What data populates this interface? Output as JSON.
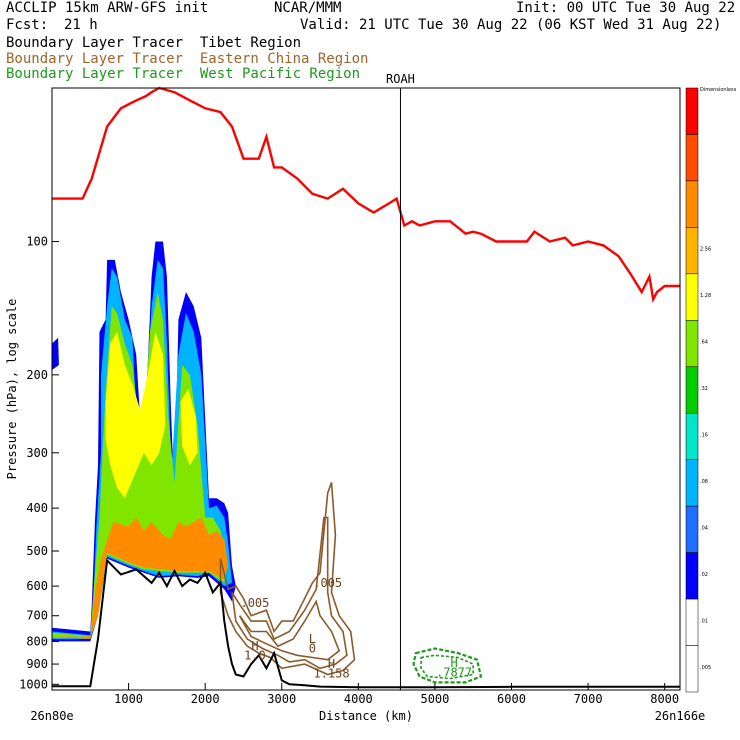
{
  "header": {
    "line1_left": "ACCLIP 15km ARW-GFS init",
    "line1_center": "NCAR/MMM",
    "line1_right": "Init: 00 UTC Tue 30 Aug 22",
    "fcst_label": "Fcst:",
    "fcst_value": "21 h",
    "valid": "Valid: 21 UTC Tue 30 Aug 22 (06 KST Wed 31 Aug 22)",
    "legend": [
      {
        "text": "Boundary Layer Tracer  Tibet Region",
        "color": "#000000"
      },
      {
        "text": "Boundary Layer Tracer  Eastern China Region",
        "color": "#a0642a"
      },
      {
        "text": "Boundary Layer Tracer  West Pacific Region",
        "color": "#1c9a1c"
      }
    ]
  },
  "chart_data": {
    "type": "contour",
    "xlabel": "Distance (km)",
    "ylabel": "Pressure (hPa), log scale",
    "xlim": [
      0,
      8200
    ],
    "ylim": [
      1030,
      45
    ],
    "x_ticks": [
      1000,
      2000,
      3000,
      4000,
      5000,
      6000,
      7000,
      8000
    ],
    "y_ticks": [
      100,
      200,
      300,
      400,
      500,
      600,
      700,
      800,
      900,
      1000
    ],
    "endpoints": {
      "left": "26n80e",
      "right": "26n166e"
    },
    "vertical_marker": {
      "label": "ROAH",
      "x": 4550
    },
    "colorbar": {
      "top_label": "Dimensionless",
      "colors": [
        "#ffffff",
        "#ffffff",
        "#0000ff",
        "#1e6fff",
        "#00b4ff",
        "#00e6c8",
        "#00cc00",
        "#80e600",
        "#ffff00",
        "#ffb400",
        "#ff8c00",
        "#ff4a00",
        "#ff0000"
      ],
      "labels": [
        ".005",
        ".01",
        ".02",
        ".04",
        ".08",
        ".16",
        ".32",
        ".64",
        "1.28",
        "2.56"
      ]
    },
    "contour_labels": [
      {
        "text": ".005",
        "x": 2650,
        "p": 655,
        "color": "#8b5a2b"
      },
      {
        "text": ".005",
        "x": 3600,
        "p": 590,
        "color": "#8b5a2b"
      },
      {
        "text": "H",
        "x": 2650,
        "p": 820,
        "color": "#8b5a2b"
      },
      {
        "text": "1.0",
        "x": 2650,
        "p": 860,
        "color": "#8b5a2b"
      },
      {
        "text": "L",
        "x": 3400,
        "p": 790,
        "color": "#8b5a2b"
      },
      {
        "text": "0",
        "x": 3400,
        "p": 830,
        "color": "#8b5a2b"
      },
      {
        "text": "H",
        "x": 3650,
        "p": 900,
        "color": "#8b5a2b"
      },
      {
        "text": "1.158",
        "x": 3650,
        "p": 945,
        "color": "#8b5a2b"
      },
      {
        "text": "H",
        "x": 5250,
        "p": 895,
        "color": "#1c9a1c"
      },
      {
        "text": ".7877",
        "x": 5250,
        "p": 940,
        "color": "#1c9a1c"
      }
    ],
    "series": [
      {
        "kind": "tropopause",
        "color": "#ff0000",
        "x": [
          0,
          400,
          520,
          720,
          900,
          1100,
          1220,
          1300,
          1400,
          1600,
          1800,
          2000,
          2200,
          2350,
          2500,
          2700,
          2800,
          2900,
          3000,
          3200,
          3400,
          3600,
          3800,
          4000,
          4200,
          4400,
          4500,
          4600,
          4700,
          4800,
          5000,
          5200,
          5400,
          5500,
          5600,
          5800,
          6000,
          6200,
          6300,
          6500,
          6700,
          6800,
          7000,
          7200,
          7400,
          7550,
          7700,
          7750,
          7800,
          7850,
          7900,
          8000,
          8200
        ],
        "p": [
          80,
          80,
          72,
          55,
          50,
          48,
          47,
          46,
          45,
          46,
          48,
          50,
          51,
          55,
          65,
          65,
          58,
          68,
          68,
          72,
          78,
          80,
          76,
          82,
          86,
          82,
          80,
          92,
          90,
          92,
          90,
          90,
          96,
          95,
          96,
          100,
          100,
          100,
          95,
          100,
          98,
          102,
          100,
          102,
          108,
          118,
          130,
          125,
          120,
          135,
          130,
          126,
          126
        ]
      },
      {
        "kind": "terrain",
        "color": "#000000",
        "x": [
          0,
          500,
          600,
          720,
          900,
          1100,
          1300,
          1400,
          1500,
          1600,
          1700,
          1800,
          1900,
          2000,
          2100,
          2200,
          2250,
          2300,
          2350,
          2400,
          2500,
          2600,
          2700,
          2800,
          2900,
          3000,
          3100,
          3300,
          3500,
          4000,
          4500,
          5000,
          6000,
          7000,
          8000,
          8200
        ],
        "p": [
          1010,
          1010,
          790,
          525,
          565,
          550,
          590,
          560,
          600,
          555,
          600,
          580,
          590,
          560,
          620,
          590,
          720,
          820,
          900,
          950,
          960,
          900,
          860,
          920,
          850,
          980,
          1000,
          1005,
          1012,
          1015,
          1015,
          1015,
          1013,
          1013,
          1013,
          1013
        ]
      }
    ],
    "filled_regions": [
      {
        "name": "tibet-tracer-0.01",
        "color": "#0000ff"
      },
      {
        "name": "tibet-tracer-0.04",
        "color": "#00b4ff"
      },
      {
        "name": "tibet-tracer-0.32",
        "color": "#80e600"
      },
      {
        "name": "tibet-tracer-0.64",
        "color": "#ffff00"
      },
      {
        "name": "tibet-tracer-1.28",
        "color": "#ff8c00"
      }
    ]
  }
}
